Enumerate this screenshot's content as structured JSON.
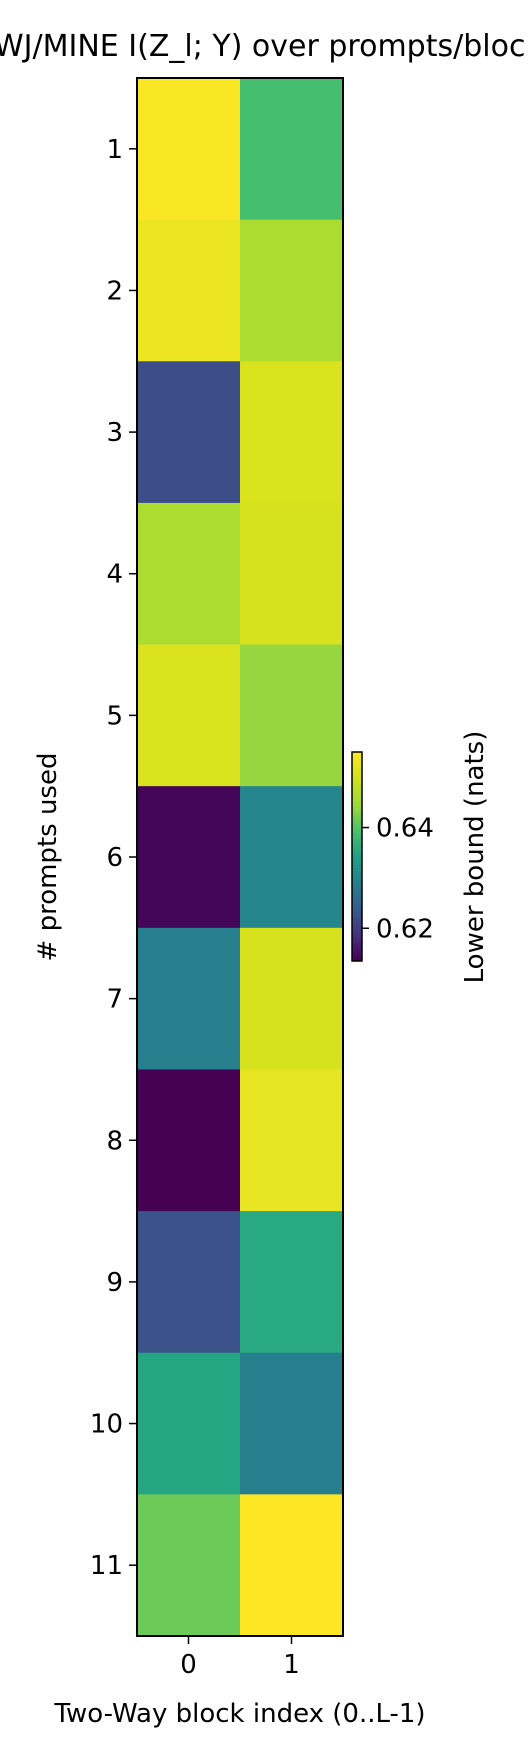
{
  "chart_data": {
    "type": "heatmap",
    "title": "NWJ/MINE  I(Z_l; Y) over prompts/blocks",
    "xlabel": "Two-Way block index (0..L-1)",
    "ylabel": "# prompts used",
    "x_categories": [
      "0",
      "1"
    ],
    "y_categories": [
      "1",
      "2",
      "3",
      "4",
      "5",
      "6",
      "7",
      "8",
      "9",
      "10",
      "11"
    ],
    "values": [
      [
        0.6545,
        0.639
      ],
      [
        0.653,
        0.646
      ],
      [
        0.622,
        0.651
      ],
      [
        0.646,
        0.6505
      ],
      [
        0.651,
        0.644
      ],
      [
        0.614,
        0.63
      ],
      [
        0.629,
        0.6505
      ],
      [
        0.6135,
        0.6525
      ],
      [
        0.6225,
        0.6355
      ],
      [
        0.635,
        0.629
      ],
      [
        0.6415,
        0.655
      ]
    ],
    "colormap": "viridis",
    "colorbar": {
      "label": "Lower bound (nats)",
      "range": [
        0.6135,
        0.655
      ],
      "ticks": [
        0.62,
        0.64
      ],
      "tick_labels": [
        "0.62",
        "0.64"
      ]
    }
  }
}
